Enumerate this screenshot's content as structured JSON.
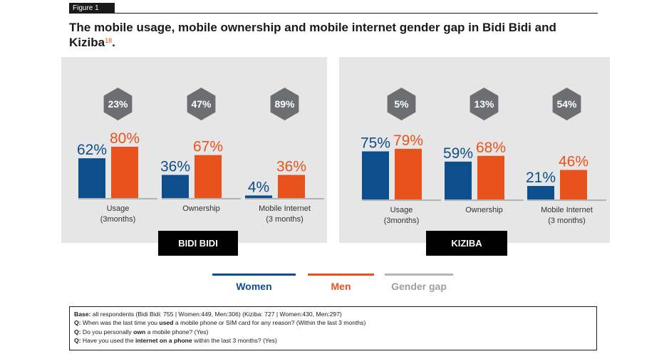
{
  "figure_tag": "Figure 1",
  "title_main": "The mobile usage, mobile ownership and mobile internet gender gap in Bidi Bidi and Kiziba",
  "title_footnote": "18",
  "title_end": ".",
  "colors": {
    "women": "#0d4e8c",
    "men": "#e8521c",
    "gap": "#6d6e71",
    "gap_line": "#b3b3b3",
    "panel": "#e6e6e6"
  },
  "legend": {
    "women": "Women",
    "men": "Men",
    "gap": "Gender gap"
  },
  "notes": {
    "base_label": "Base:",
    "base_text": " all respondents (Bidi Bidi: 755 | Women:449, Men:306) (Kiziba: 727 | Women:430, Men:297)",
    "q1_pre": "Q:",
    "q1_a": " When was the last time you ",
    "q1_b": "used",
    "q1_c": " a mobile phone or SIM card for any reason? (Within the last 3 months)",
    "q2_pre": "Q:",
    "q2_a": " Do you personally ",
    "q2_b": "own",
    "q2_c": " a mobile phone? (Yes)",
    "q3_pre": "Q:",
    "q3_a": " Have you used the ",
    "q3_b": "internet on a phone",
    "q3_c": " within the last 3 months? (Yes)"
  },
  "chart_data": [
    {
      "type": "bar",
      "site": "BIDI BIDI",
      "categories": [
        "Usage",
        "Ownership",
        "Mobile Internet"
      ],
      "category_sublabels": [
        "(3months)",
        "",
        "(3 months)"
      ],
      "series": [
        {
          "name": "Women",
          "values": [
            62,
            36,
            4
          ]
        },
        {
          "name": "Men",
          "values": [
            80,
            67,
            36
          ]
        }
      ],
      "gender_gap": [
        23,
        47,
        89
      ],
      "unit": "%",
      "ylim": [
        0,
        100
      ]
    },
    {
      "type": "bar",
      "site": "KIZIBA",
      "categories": [
        "Usage",
        "Ownership",
        "Mobile Internet"
      ],
      "category_sublabels": [
        "(3months)",
        "",
        "(3 months)"
      ],
      "series": [
        {
          "name": "Women",
          "values": [
            75,
            59,
            21
          ]
        },
        {
          "name": "Men",
          "values": [
            79,
            68,
            46
          ]
        }
      ],
      "gender_gap": [
        5,
        13,
        54
      ],
      "unit": "%",
      "ylim": [
        0,
        100
      ]
    }
  ]
}
